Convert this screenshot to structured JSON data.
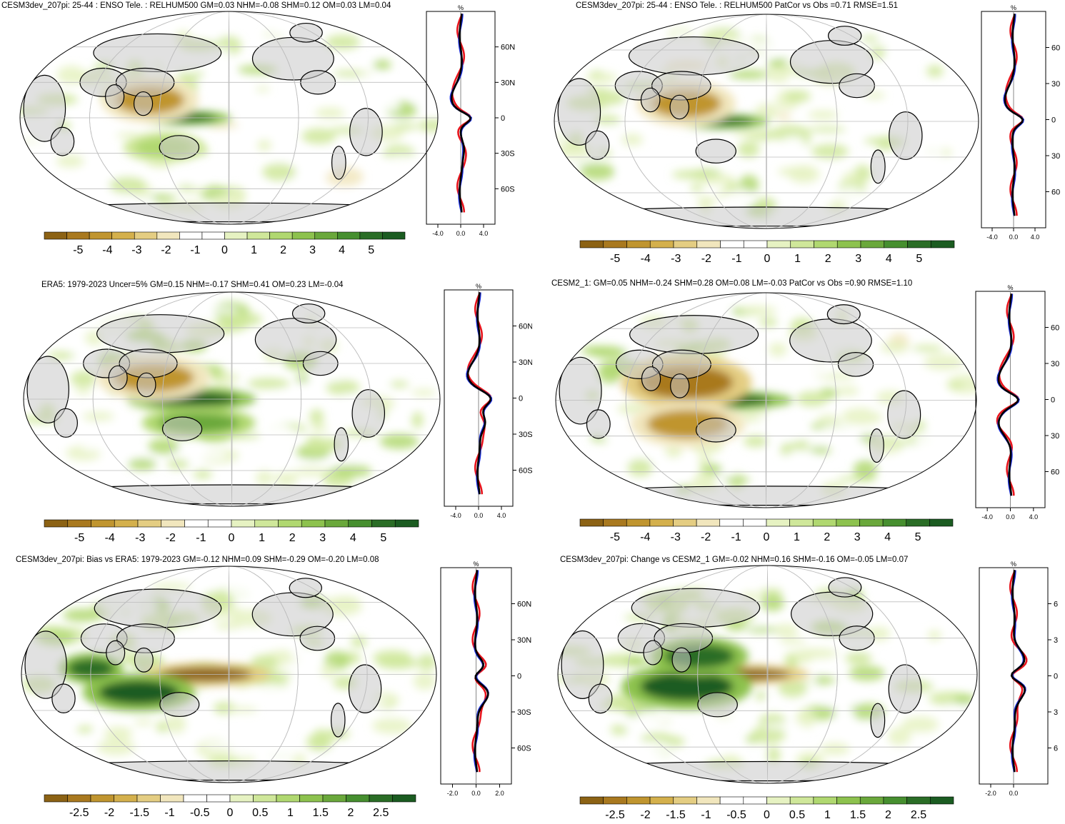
{
  "chart_data": [
    {
      "type": "heatmap",
      "title": "CESM3dev_207pi: 25-44 : ENSO Tele. : RELHUM500 GM=0.03 NHM=-0.08 SHM=0.12 OM=0.03 LM=0.04",
      "colorbar_ticks": [
        "-5",
        "-4",
        "-3",
        "-2",
        "-1",
        "0",
        "1",
        "2",
        "3",
        "4",
        "5"
      ],
      "zonal_mean": {
        "unit": "%",
        "x_ticks": [
          "-4.0",
          "0.0",
          "4.0"
        ],
        "xlim": [
          -6,
          6
        ],
        "y_ticks": [
          "60N",
          "30N",
          "0",
          "30S",
          "60S"
        ]
      },
      "features": [
        {
          "lon": 140,
          "lat": 0,
          "value": 4.5,
          "rx": 30,
          "ry": 4
        },
        {
          "lon": 110,
          "lat": 15,
          "value": -3.5,
          "rx": 30,
          "ry": 12
        },
        {
          "lon": 120,
          "lat": -25,
          "value": 1.5,
          "rx": 25,
          "ry": 8
        }
      ]
    },
    {
      "type": "heatmap",
      "title": "CESM3dev_207pi: 25-44 : ENSO Tele. : RELHUM500 PatCor vs Obs =0.71 RMSE=1.51",
      "colorbar_ticks": [
        "-5",
        "-4",
        "-3",
        "-2",
        "-1",
        "0",
        "1",
        "2",
        "3",
        "4",
        "5"
      ],
      "zonal_mean": {
        "unit": "%",
        "x_ticks": [
          "-4.0",
          "0.0",
          "4.0"
        ],
        "xlim": [
          -6,
          6
        ],
        "y_ticks": [
          "60",
          "30",
          "0",
          "30",
          "60"
        ]
      },
      "features": [
        {
          "lon": 140,
          "lat": 0,
          "value": 4.5,
          "rx": 30,
          "ry": 4
        },
        {
          "lon": 110,
          "lat": 15,
          "value": -3.5,
          "rx": 30,
          "ry": 12
        }
      ]
    },
    {
      "type": "heatmap",
      "title": "ERA5: 1979-2023 Uncer=5% GM=0.15 NHM=-0.17 SHM=0.41 OM=0.23 LM=-0.04",
      "colorbar_ticks": [
        "-5",
        "-4",
        "-3",
        "-2",
        "-1",
        "0",
        "1",
        "2",
        "3",
        "4",
        "5"
      ],
      "zonal_mean": {
        "unit": "%",
        "x_ticks": [
          "-4.0",
          "0.0",
          "4.0"
        ],
        "xlim": [
          -6,
          6
        ],
        "y_ticks": [
          "60N",
          "30N",
          "0",
          "30S",
          "60S"
        ]
      },
      "features": [
        {
          "lon": 145,
          "lat": 0,
          "value": 5,
          "rx": 40,
          "ry": 6
        },
        {
          "lon": 110,
          "lat": 18,
          "value": -4,
          "rx": 35,
          "ry": 12
        },
        {
          "lon": 150,
          "lat": -20,
          "value": 3,
          "rx": 35,
          "ry": 8
        }
      ]
    },
    {
      "type": "heatmap",
      "title": "CESM2_1: GM=0.05 NHM=-0.24 SHM=0.28 OM=0.08 LM=-0.03 PatCor vs Obs =0.90 RMSE=1.10",
      "colorbar_ticks": [
        "-5",
        "-4",
        "-3",
        "-2",
        "-1",
        "0",
        "1",
        "2",
        "3",
        "4",
        "5"
      ],
      "zonal_mean": {
        "unit": "%",
        "x_ticks": [
          "-4.0",
          "0.0",
          "4.0"
        ],
        "xlim": [
          -6,
          6
        ],
        "y_ticks": [
          "60",
          "30",
          "0",
          "30",
          "60"
        ]
      },
      "features": [
        {
          "lon": 140,
          "lat": 0,
          "value": 5,
          "rx": 45,
          "ry": 5
        },
        {
          "lon": 110,
          "lat": 15,
          "value": -4.5,
          "rx": 40,
          "ry": 14
        },
        {
          "lon": 110,
          "lat": -20,
          "value": -4,
          "rx": 35,
          "ry": 12
        }
      ]
    },
    {
      "type": "heatmap",
      "title": "CESM3dev_207pi: Bias vs ERA5: 1979-2023 GM=-0.12 NHM=0.09 SHM=-0.29 OM=-0.20 LM=0.08",
      "colorbar_ticks": [
        "-2.5",
        "-2",
        "-1.5",
        "-1",
        "-0.5",
        "0",
        "0.5",
        "1",
        "1.5",
        "2",
        "2.5"
      ],
      "zonal_mean": {
        "unit": "%",
        "x_ticks": [
          "-2.0",
          "0.0",
          "2.0"
        ],
        "xlim": [
          -3,
          3
        ],
        "y_ticks": [
          "60N",
          "30N",
          "0",
          "30S",
          "60S"
        ]
      },
      "features": [
        {
          "lon": 160,
          "lat": 0,
          "value": -2.5,
          "rx": 40,
          "ry": 6
        },
        {
          "lon": 100,
          "lat": -15,
          "value": 2.5,
          "rx": 35,
          "ry": 10
        },
        {
          "lon": 60,
          "lat": 5,
          "value": 2.2,
          "rx": 20,
          "ry": 8
        }
      ]
    },
    {
      "type": "heatmap",
      "title": "CESM3dev_207pi: Change vs CESM2_1 GM=-0.02 NHM=0.16 SHM=-0.16 OM=-0.05 LM=0.07",
      "colorbar_ticks": [
        "-2.5",
        "-2",
        "-1.5",
        "-1",
        "-0.5",
        "0",
        "0.5",
        "1",
        "1.5",
        "2",
        "2.5"
      ],
      "zonal_mean": {
        "unit": "%",
        "x_ticks": [
          "-2.0",
          "0.0"
        ],
        "xlim": [
          -3,
          3
        ],
        "y_ticks": [
          "6",
          "3",
          "0",
          "3",
          "6"
        ]
      },
      "features": [
        {
          "lon": 160,
          "lat": 0,
          "value": -2.5,
          "rx": 40,
          "ry": 5
        },
        {
          "lon": 110,
          "lat": -10,
          "value": 2.5,
          "rx": 40,
          "ry": 12
        },
        {
          "lon": 120,
          "lat": 15,
          "value": 2,
          "rx": 30,
          "ry": 10
        }
      ]
    }
  ]
}
